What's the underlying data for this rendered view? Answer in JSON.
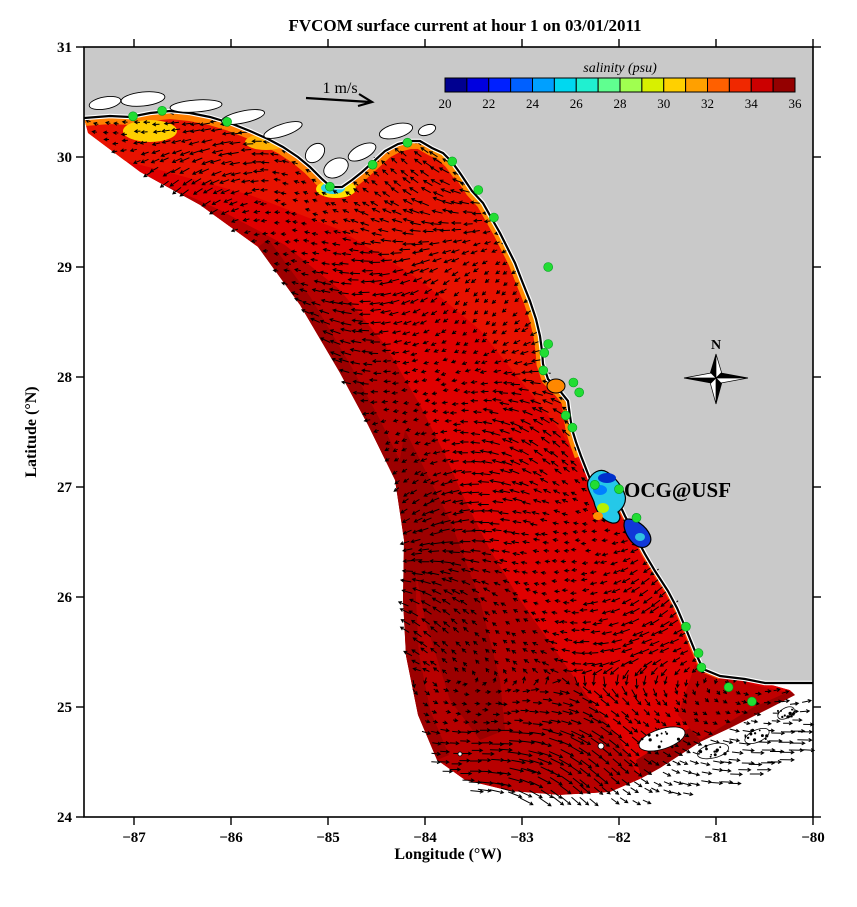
{
  "figure": {
    "title": "FVCOM surface current at hour 1 on 03/01/2011",
    "xlabel": "Longitude (°W)",
    "ylabel": "Latitude (°N)",
    "scale_label": "1 m/s",
    "compass_label": "N",
    "annotation_ocg": "OCG@USF"
  },
  "colors": {
    "land": "#c9c9c9",
    "outside_domain": "#ffffff",
    "coastline": "#000000",
    "arrow": "#000000",
    "station": "#22dd33",
    "station_edge": "#00a020",
    "annotation": "#ee0000",
    "shelf_base": "#e00000",
    "shelf_mid_dark": "#b80000",
    "shelf_darkest": "#9c0000",
    "shelf_bright": "#e81200",
    "coastal_orange": "#ff7f00",
    "coastal_yellow": "#ffd700"
  },
  "chart_data": {
    "type": "heatmap",
    "subtype": "coastal ocean model map: salinity color field with surface current vector arrows",
    "title": "FVCOM surface current at hour 1 on 03/01/2011",
    "xlabel": "Longitude (°W)",
    "ylabel": "Latitude (°N)",
    "xlim": [
      -87.5,
      -80
    ],
    "ylim": [
      24,
      31
    ],
    "x_ticks": [
      -87,
      -86,
      -85,
      -84,
      -83,
      -82,
      -81,
      -80
    ],
    "x_tick_labels": [
      "−87",
      "−86",
      "−85",
      "−84",
      "−83",
      "−82",
      "−81",
      "−80"
    ],
    "y_ticks": [
      24,
      25,
      26,
      27,
      28,
      29,
      30,
      31
    ],
    "y_tick_labels": [
      "24",
      "25",
      "26",
      "27",
      "28",
      "29",
      "30",
      "31"
    ],
    "grid": false,
    "colorbar": {
      "label": "salinity (psu)",
      "min": 20,
      "max": 36,
      "ticks": [
        20,
        22,
        24,
        26,
        28,
        30,
        32,
        34,
        36
      ],
      "segment_colors": [
        "#000090",
        "#0000e0",
        "#0020ff",
        "#0060ff",
        "#00a0ff",
        "#00d8f0",
        "#20f0d0",
        "#60ff90",
        "#a0ff50",
        "#d8f000",
        "#ffd000",
        "#ffa000",
        "#ff6000",
        "#f02800",
        "#cc0000",
        "#940000"
      ],
      "position": "top inside plot"
    },
    "scale_vector": {
      "label": "1 m/s",
      "meaning": "reference length for current vector arrows"
    },
    "field_summary": {
      "open_shelf_salinity_psu": [
        34,
        36
      ],
      "coastal_band_salinity_psu": [
        29,
        33
      ],
      "flow_description": "dense black current vectors over the West Florida Shelf, broadly westward/southwestward over the shelf, turning east-southeast near the Florida Keys; strongest vectors along the southern open boundary"
    },
    "low_salinity_features": [
      {
        "name": "panhandle nearshore band",
        "approx_lon": -86.6,
        "approx_lat": 30.3,
        "salinity_psu": [
          29,
          33
        ]
      },
      {
        "name": "Apalachicola Bay plume",
        "approx_lon": -85.0,
        "approx_lat": 29.7,
        "salinity_psu": [
          20,
          27
        ]
      },
      {
        "name": "Big Bend coastal strip",
        "approx_lon": -83.4,
        "approx_lat": 29.5,
        "salinity_psu": [
          26,
          32
        ]
      },
      {
        "name": "Tampa Bay",
        "approx_lon": -82.3,
        "approx_lat": 27.1,
        "salinity_psu": [
          20,
          30
        ]
      },
      {
        "name": "Charlotte Harbor",
        "approx_lon": -81.9,
        "approx_lat": 26.7,
        "salinity_psu": [
          20,
          26
        ]
      }
    ],
    "stations": [
      {
        "lon": -87.01,
        "lat": 30.37
      },
      {
        "lon": -86.71,
        "lat": 30.42
      },
      {
        "lon": -86.04,
        "lat": 30.32
      },
      {
        "lon": -84.98,
        "lat": 29.73
      },
      {
        "lon": -84.54,
        "lat": 29.93
      },
      {
        "lon": -84.18,
        "lat": 30.13
      },
      {
        "lon": -83.72,
        "lat": 29.96
      },
      {
        "lon": -83.45,
        "lat": 29.7
      },
      {
        "lon": -83.29,
        "lat": 29.45
      },
      {
        "lon": -82.73,
        "lat": 29.0
      },
      {
        "lon": -82.73,
        "lat": 28.3
      },
      {
        "lon": -82.77,
        "lat": 28.22
      },
      {
        "lon": -82.78,
        "lat": 28.06
      },
      {
        "lon": -82.47,
        "lat": 27.95
      },
      {
        "lon": -82.41,
        "lat": 27.86
      },
      {
        "lon": -82.55,
        "lat": 27.65
      },
      {
        "lon": -82.48,
        "lat": 27.54
      },
      {
        "lon": -82.25,
        "lat": 27.02
      },
      {
        "lon": -82.0,
        "lat": 26.98
      },
      {
        "lon": -81.82,
        "lat": 26.72
      },
      {
        "lon": -81.31,
        "lat": 25.73
      },
      {
        "lon": -81.18,
        "lat": 25.49
      },
      {
        "lon": -81.15,
        "lat": 25.36
      },
      {
        "lon": -80.87,
        "lat": 25.18
      },
      {
        "lon": -80.63,
        "lat": 25.05
      }
    ],
    "annotations": [
      {
        "text": "OCG@USF",
        "color": "#ee0000",
        "approx_lon": -81.95,
        "approx_lat": 26.97
      },
      {
        "text": "N",
        "type": "compass-rose",
        "approx_lon": -81.0,
        "approx_lat": 28.0
      },
      {
        "text": "1 m/s",
        "type": "vector-scale",
        "approx_lon": -84.8,
        "approx_lat": 30.6
      }
    ]
  }
}
